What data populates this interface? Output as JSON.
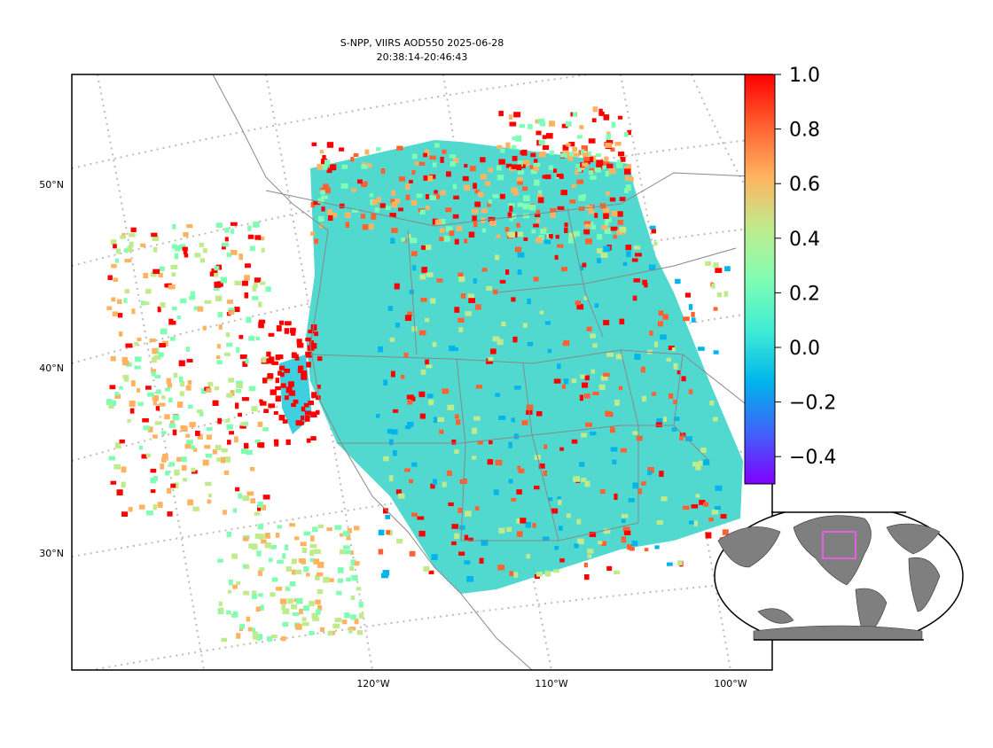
{
  "chart_data": {
    "type": "map",
    "title": [
      "S-NPP, VIIRS AOD550 2025-06-28",
      "20:38:14-20:46:43"
    ],
    "lat_labels": [
      "50°N",
      "40°N",
      "30°N"
    ],
    "lon_labels": [
      "120°W",
      "110°W",
      "100°W"
    ],
    "colorbar": {
      "lim": [
        -0.5,
        1.0
      ],
      "ticks": [
        {
          "value": 1.0,
          "label": "1.0"
        },
        {
          "value": 0.8,
          "label": "0.8"
        },
        {
          "value": 0.6,
          "label": "0.6"
        },
        {
          "value": 0.4,
          "label": "0.4"
        },
        {
          "value": 0.2,
          "label": "0.2"
        },
        {
          "value": 0.0,
          "label": "0.0"
        },
        {
          "value": -0.2,
          "label": "−0.2"
        },
        {
          "value": -0.4,
          "label": "−0.4"
        }
      ],
      "colors": [
        "#8000ff",
        "#4062fa",
        "#00b5eb",
        "#40ecd4",
        "#80feb3",
        "#c0eb8d",
        "#ffb360",
        "#ff6130",
        "#ff0000"
      ]
    }
  }
}
